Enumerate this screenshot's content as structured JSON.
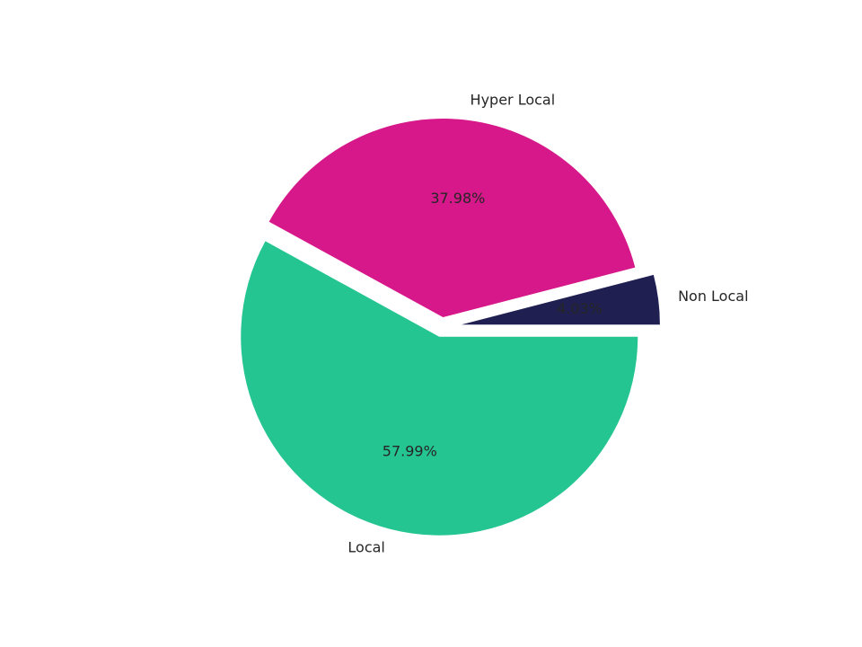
{
  "chart_data": {
    "type": "pie",
    "categories": [
      "Non Local",
      "Hyper Local",
      "Local"
    ],
    "values": [
      4.03,
      37.98,
      57.99
    ],
    "value_labels": [
      "4.03%",
      "37.98%",
      "57.99%"
    ],
    "colors": [
      "#1f1f52",
      "#d6188a",
      "#25c592"
    ],
    "explode": [
      0.1,
      0.05,
      0.05
    ],
    "start_angle": 0
  }
}
